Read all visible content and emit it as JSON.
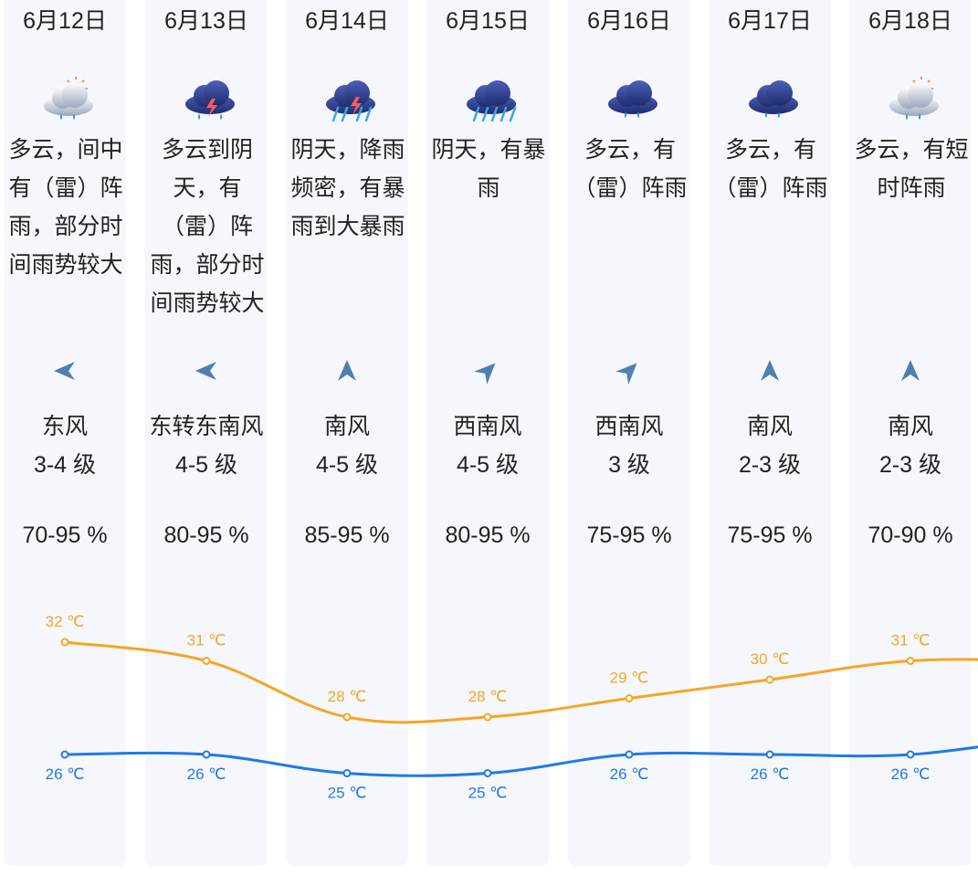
{
  "days": [
    {
      "date": "6月12日",
      "icon": "cloudy-sun-rain-icon",
      "desc": [
        "多云，间中",
        "有（雷）阵",
        "雨，部分时",
        "间雨势较大"
      ],
      "wind_dir": "东风",
      "wind_level": "3-4 级",
      "humidity": "70-95 %"
    },
    {
      "date": "6月13日",
      "icon": "thunderstorm-icon",
      "desc": [
        "多云到阴",
        "天，有",
        "（雷）阵",
        "雨，部分时",
        "间雨势较大"
      ],
      "wind_dir": "东转东南风",
      "wind_level": "4-5 级",
      "humidity": "80-95 %"
    },
    {
      "date": "6月14日",
      "icon": "heavy-thunderstorm-icon",
      "desc": [
        "阴天，降雨",
        "频密，有暴",
        "雨到大暴雨"
      ],
      "wind_dir": "南风",
      "wind_level": "4-5 级",
      "humidity": "85-95 %"
    },
    {
      "date": "6月15日",
      "icon": "heavy-rain-icon",
      "desc": [
        "阴天，有暴",
        "雨"
      ],
      "wind_dir": "西南风",
      "wind_level": "4-5 级",
      "humidity": "80-95 %"
    },
    {
      "date": "6月16日",
      "icon": "rain-cloud-icon",
      "desc": [
        "多云，有",
        "（雷）阵雨"
      ],
      "wind_dir": "西南风",
      "wind_level": "3 级",
      "humidity": "75-95 %"
    },
    {
      "date": "6月17日",
      "icon": "rain-cloud-icon",
      "desc": [
        "多云，有",
        "（雷）阵雨"
      ],
      "wind_dir": "南风",
      "wind_level": "2-3 级",
      "humidity": "75-95 %"
    },
    {
      "date": "6月18日",
      "icon": "cloudy-sun-rain-icon",
      "desc": [
        "多云，有短",
        "时阵雨"
      ],
      "wind_dir": "南风",
      "wind_level": "2-3 级",
      "humidity": "70-90 %"
    }
  ],
  "chart_data": {
    "type": "line",
    "categories": [
      "6月12日",
      "6月13日",
      "6月14日",
      "6月15日",
      "6月16日",
      "6月17日",
      "6月18日"
    ],
    "unit": "℃",
    "series": [
      {
        "values": [
          32,
          31,
          28,
          28,
          29,
          30,
          31
        ],
        "labels": [
          "32 ℃",
          "31 ℃",
          "28 ℃",
          "28 ℃",
          "29 ℃",
          "30 ℃",
          "31 ℃"
        ],
        "color": "#f5a623"
      },
      {
        "values": [
          26,
          26,
          25,
          25,
          26,
          26,
          26
        ],
        "labels": [
          "26 ℃",
          "26 ℃",
          "25 ℃",
          "25 ℃",
          "26 ℃",
          "26 ℃",
          "26 ℃"
        ],
        "color": "#1e7be6"
      }
    ]
  },
  "colors": {
    "high": "#f5a623",
    "low": "#1e7be6",
    "arrow": "#4f7fb0",
    "card": "#f5f7fc"
  }
}
